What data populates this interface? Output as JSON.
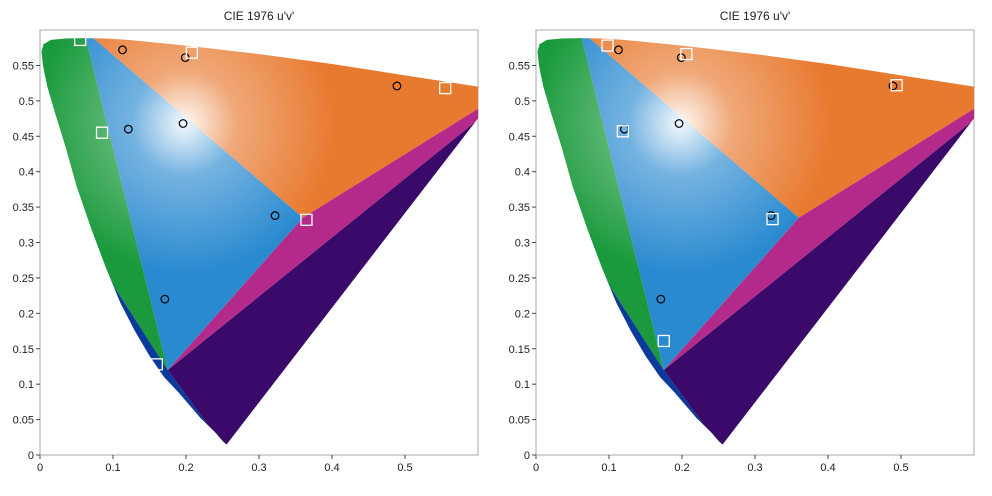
{
  "chart_data": [
    {
      "type": "scatter",
      "title": "CIE 1976 u'v'",
      "xlim": [
        0,
        0.6
      ],
      "ylim": [
        0,
        0.6
      ],
      "x_ticks": [
        0,
        0.1,
        0.2,
        0.3,
        0.4,
        0.5
      ],
      "x_tick_labels": [
        "0",
        "0.1",
        "0.2",
        "0.3",
        "0.4",
        "0.5"
      ],
      "y_ticks": [
        0,
        0.05,
        0.1,
        0.15,
        0.2,
        0.25,
        0.3,
        0.35,
        0.4,
        0.45,
        0.5,
        0.55
      ],
      "y_tick_labels": [
        "0",
        "0.05",
        "0.1",
        "0.15",
        "0.2",
        "0.25",
        "0.3",
        "0.35",
        "0.4",
        "0.45",
        "0.5",
        "0.55"
      ],
      "grid": false,
      "series": [
        {
          "marker": "circle",
          "color": "#000000",
          "points": [
            [
              0.113,
              0.572
            ],
            [
              0.199,
              0.561
            ],
            [
              0.489,
              0.521
            ],
            [
              0.121,
              0.46
            ],
            [
              0.196,
              0.468
            ],
            [
              0.322,
              0.338
            ],
            [
              0.171,
              0.22
            ]
          ]
        },
        {
          "marker": "square",
          "color": "#ffffff",
          "points": [
            [
              0.055,
              0.586
            ],
            [
              0.208,
              0.568
            ],
            [
              0.555,
              0.518
            ],
            [
              0.085,
              0.455
            ],
            [
              0.365,
              0.332
            ],
            [
              0.16,
              0.128
            ]
          ]
        }
      ]
    },
    {
      "type": "scatter",
      "title": "CIE 1976 u'v'",
      "xlim": [
        0,
        0.6
      ],
      "ylim": [
        0,
        0.6
      ],
      "x_ticks": [
        0,
        0.1,
        0.2,
        0.3,
        0.4,
        0.5
      ],
      "x_tick_labels": [
        "0",
        "0.1",
        "0.2",
        "0.3",
        "0.4",
        "0.5"
      ],
      "y_ticks": [
        0,
        0.05,
        0.1,
        0.15,
        0.2,
        0.25,
        0.3,
        0.35,
        0.4,
        0.45,
        0.5,
        0.55
      ],
      "y_tick_labels": [
        "0",
        "0.05",
        "0.1",
        "0.15",
        "0.2",
        "0.25",
        "0.3",
        "0.35",
        "0.4",
        "0.45",
        "0.5",
        "0.55"
      ],
      "grid": false,
      "series": [
        {
          "marker": "circle",
          "color": "#000000",
          "points": [
            [
              0.113,
              0.572
            ],
            [
              0.199,
              0.561
            ],
            [
              0.489,
              0.521
            ],
            [
              0.121,
              0.46
            ],
            [
              0.196,
              0.468
            ],
            [
              0.322,
              0.338
            ],
            [
              0.171,
              0.22
            ]
          ]
        },
        {
          "marker": "square",
          "color": "#ffffff",
          "points": [
            [
              0.098,
              0.578
            ],
            [
              0.206,
              0.566
            ],
            [
              0.494,
              0.522
            ],
            [
              0.119,
              0.457
            ],
            [
              0.324,
              0.333
            ],
            [
              0.175,
              0.161
            ]
          ]
        }
      ]
    }
  ]
}
